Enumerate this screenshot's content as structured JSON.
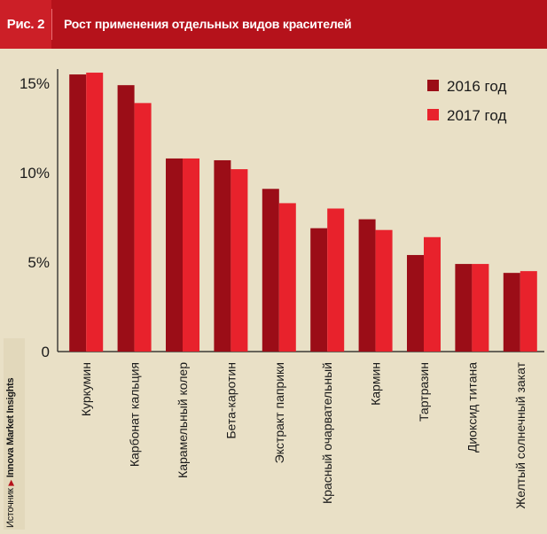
{
  "header": {
    "figure_label": "Рис. 2",
    "title": "Рост применения отдельных видов красителей"
  },
  "source": {
    "prefix": "Источник",
    "name": "Innova Market Insights"
  },
  "colors": {
    "header_bg": "#b5121b",
    "panel_bg": "#e9e0c6",
    "series_2016": "#9b0d17",
    "series_2017": "#e8222c"
  },
  "chart_data": {
    "type": "bar",
    "categories": [
      "Куркумин",
      "Карбонат кальция",
      "Карамельный колер",
      "Бета-каротин",
      "Экстракт паприки",
      "Красный очарвательный",
      "Кармин",
      "Тартразин",
      "Диоксид титана",
      "Желтый солнечный закат"
    ],
    "series": [
      {
        "name": "2016 год",
        "color": "#9b0d17",
        "values": [
          15.5,
          14.9,
          10.8,
          10.7,
          9.1,
          6.9,
          7.4,
          5.4,
          4.9,
          4.4
        ]
      },
      {
        "name": "2017 год",
        "color": "#e8222c",
        "values": [
          15.6,
          13.9,
          10.8,
          10.2,
          8.3,
          8.0,
          6.8,
          6.4,
          4.9,
          4.5
        ]
      }
    ],
    "ylim": [
      0,
      15.8
    ],
    "yticks": [
      {
        "value": 0,
        "label": "0"
      },
      {
        "value": 5,
        "label": "5%"
      },
      {
        "value": 10,
        "label": "10%"
      },
      {
        "value": 15,
        "label": "15%"
      }
    ],
    "legend": "top-right",
    "grid": false
  }
}
